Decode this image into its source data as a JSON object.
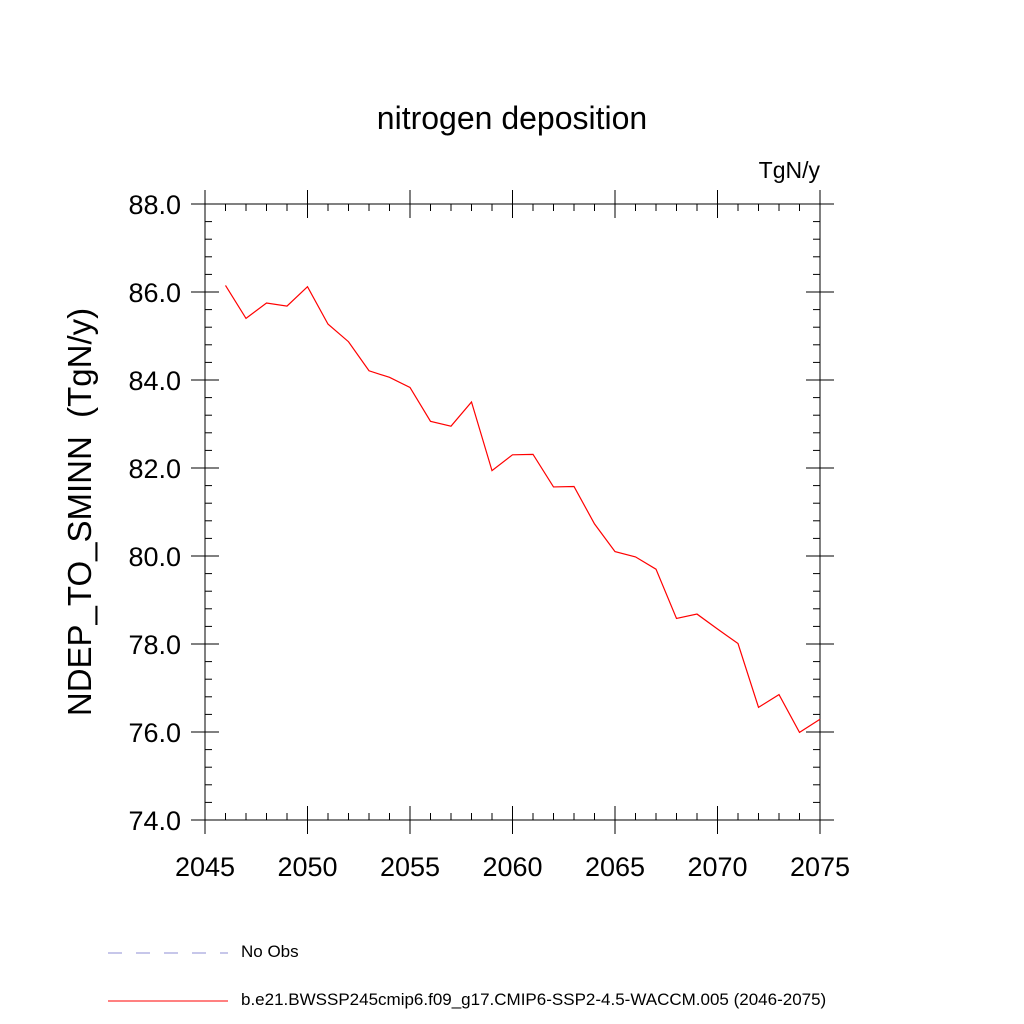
{
  "chart_data": {
    "type": "line",
    "title": "nitrogen deposition",
    "units_label": "TgN/y",
    "ylabel": "NDEP_TO_SMINN  (TgN/y)",
    "xlabel": "",
    "xlim": [
      2045,
      2075
    ],
    "ylim": [
      74.0,
      88.0
    ],
    "x_ticks": [
      2045,
      2050,
      2055,
      2060,
      2065,
      2070,
      2075
    ],
    "y_ticks": [
      "74.0",
      "76.0",
      "78.0",
      "80.0",
      "82.0",
      "84.0",
      "86.0",
      "88.0"
    ],
    "x_minor_step": 1,
    "y_minor_step": 0.4,
    "grid": false,
    "legend_position": "bottom-left",
    "series": [
      {
        "name": "No Obs",
        "color": "#8f8fd6",
        "style": "dashed",
        "x": [],
        "values": []
      },
      {
        "name": "b.e21.BWSSP245cmip6.f09_g17.CMIP6-SSP2-4.5-WACCM.005 (2046-2075)",
        "color": "#ff0000",
        "style": "solid",
        "x": [
          2046,
          2047,
          2048,
          2049,
          2050,
          2051,
          2052,
          2053,
          2054,
          2055,
          2056,
          2057,
          2058,
          2059,
          2060,
          2061,
          2062,
          2063,
          2064,
          2065,
          2066,
          2067,
          2068,
          2069,
          2070,
          2071,
          2072,
          2073,
          2074,
          2075
        ],
        "values": [
          86.15,
          85.4,
          85.75,
          85.68,
          86.12,
          85.27,
          84.87,
          84.21,
          84.06,
          83.83,
          83.06,
          82.95,
          83.5,
          81.94,
          82.3,
          82.31,
          81.57,
          81.58,
          80.73,
          80.1,
          79.98,
          79.7,
          78.58,
          78.68,
          78.34,
          78.01,
          76.56,
          76.85,
          75.99,
          76.29
        ]
      }
    ]
  }
}
